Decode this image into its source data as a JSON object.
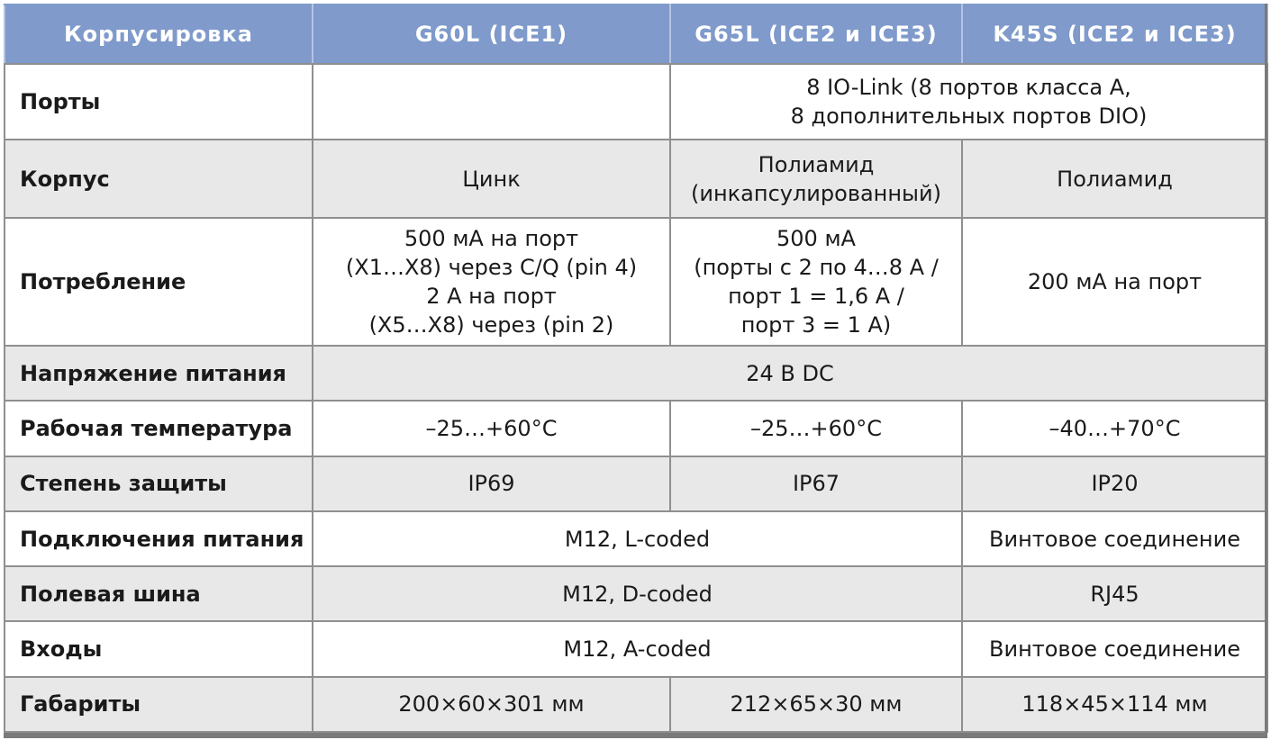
{
  "header": {
    "col0": "Корпусировка",
    "col1": "G60L (ICE1)",
    "col2": "G65L (ICE2 и ICE3)",
    "col3": "K45S (ICE2 и ICE3)"
  },
  "rows": {
    "ports": {
      "label": "Порты",
      "g60l": "",
      "g65l_k45s_line1": "8 IO-Link (8 портов класса A,",
      "g65l_k45s_line2": "8 дополнительных портов DIO)"
    },
    "housing": {
      "label": "Корпус",
      "g60l": "Цинк",
      "g65l_line1": "Полиамид",
      "g65l_line2": "(инкапсулированный)",
      "k45s": "Полиамид"
    },
    "consumption": {
      "label": "Потребление",
      "g60l_line1": "500 мА на порт",
      "g60l_line2": "(X1…X8) через C/Q (pin 4)",
      "g60l_line3": "2 А на порт",
      "g60l_line4": "(X5…X8) через (pin 2)",
      "g65l_line1": "500 мА",
      "g65l_line2": "(порты с 2 по 4…8 А /",
      "g65l_line3": "порт 1 = 1,6 А /",
      "g65l_line4": "порт 3 = 1 А)",
      "k45s": "200 мА на порт"
    },
    "voltage": {
      "label": "Напряжение питания",
      "all": "24 В DC"
    },
    "temperature": {
      "label": "Рабочая температура",
      "g60l": "–25…+60°C",
      "g65l": "–25…+60°C",
      "k45s": "–40…+70°C"
    },
    "protection": {
      "label": "Степень защиты",
      "g60l": "IP69",
      "g65l": "IP67",
      "k45s": "IP20"
    },
    "power_connection": {
      "label": "Подключения питания",
      "g60l_g65l": "M12, L-coded",
      "k45s": "Винтовое соединение"
    },
    "fieldbus": {
      "label": "Полевая шина",
      "g60l_g65l": "M12, D-coded",
      "k45s": "RJ45"
    },
    "inputs": {
      "label": "Входы",
      "g60l_g65l": "M12, A-coded",
      "k45s": "Винтовое соединение"
    },
    "dimensions": {
      "label": "Габариты",
      "g60l": "200×60×301 мм",
      "g65l": "212×65×30 мм",
      "k45s": "118×45×114 мм"
    }
  }
}
